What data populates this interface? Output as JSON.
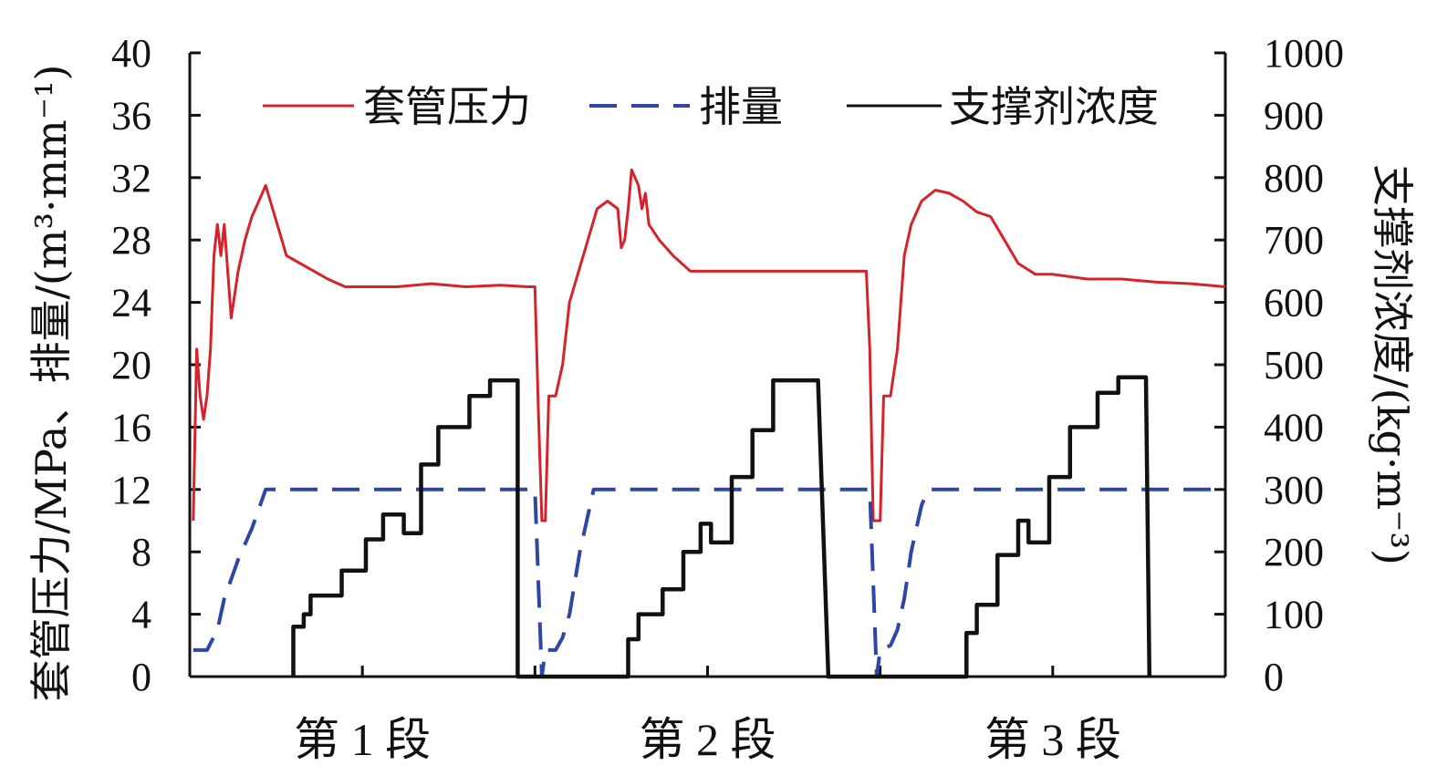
{
  "chart_data": {
    "type": "line",
    "title": "",
    "y_left": {
      "label": "套管压力/MPa、排量/(m³·mm⁻¹)",
      "range": [
        0,
        40
      ],
      "ticks": [
        0,
        4,
        8,
        12,
        16,
        20,
        24,
        28,
        32,
        36,
        40
      ],
      "tick_labels": [
        "0",
        "4",
        "8",
        "12",
        "16",
        "20",
        "24",
        "28",
        "32",
        "36",
        "40"
      ]
    },
    "y_right": {
      "label": "支撑剂浓度/(kg·m⁻³)",
      "range": [
        0,
        1000
      ],
      "ticks": [
        0,
        100,
        200,
        300,
        400,
        500,
        600,
        700,
        800,
        900,
        1000
      ],
      "tick_labels": [
        "0",
        "100",
        "200",
        "300",
        "400",
        "500",
        "600",
        "700",
        "800",
        "900",
        "1000"
      ]
    },
    "x_axis": {
      "range": [
        0,
        300
      ],
      "segment_labels": [
        "第 1 段",
        "第 2 段",
        "第 3 段"
      ],
      "segment_centers": [
        50,
        150,
        250
      ]
    },
    "legend": {
      "placement": "top",
      "entries": [
        "套管压力",
        "排量",
        "支撑剂浓度"
      ]
    },
    "series": [
      {
        "name": "套管压力",
        "axis": "left",
        "color": "#d6222a",
        "style": "solid",
        "points": [
          [
            1,
            10
          ],
          [
            2,
            21
          ],
          [
            3,
            18
          ],
          [
            4,
            16.5
          ],
          [
            5,
            18
          ],
          [
            6,
            21
          ],
          [
            7,
            27
          ],
          [
            8,
            29
          ],
          [
            9,
            27
          ],
          [
            10,
            29
          ],
          [
            11,
            26
          ],
          [
            12,
            23
          ],
          [
            14,
            26
          ],
          [
            16,
            28
          ],
          [
            18,
            29.5
          ],
          [
            20,
            30.5
          ],
          [
            22,
            31.5
          ],
          [
            24,
            30
          ],
          [
            26,
            28.5
          ],
          [
            28,
            27
          ],
          [
            32,
            26.5
          ],
          [
            36,
            26
          ],
          [
            40,
            25.5
          ],
          [
            45,
            25
          ],
          [
            50,
            25
          ],
          [
            60,
            25
          ],
          [
            70,
            25.2
          ],
          [
            80,
            25
          ],
          [
            90,
            25.1
          ],
          [
            98,
            25
          ],
          [
            100,
            25
          ],
          [
            101,
            17
          ],
          [
            102,
            10
          ],
          [
            103,
            10
          ],
          [
            104,
            18
          ],
          [
            106,
            18
          ],
          [
            108,
            20
          ],
          [
            110,
            24
          ],
          [
            112,
            25.5
          ],
          [
            114,
            27
          ],
          [
            116,
            28.5
          ],
          [
            118,
            30
          ],
          [
            121,
            30.5
          ],
          [
            124,
            30
          ],
          [
            125,
            27.5
          ],
          [
            126,
            28
          ],
          [
            127,
            30
          ],
          [
            128,
            32.5
          ],
          [
            130,
            31.5
          ],
          [
            131,
            30
          ],
          [
            132,
            31
          ],
          [
            133,
            29
          ],
          [
            136,
            28
          ],
          [
            140,
            27
          ],
          [
            145,
            26
          ],
          [
            150,
            26
          ],
          [
            160,
            26
          ],
          [
            170,
            26
          ],
          [
            180,
            26
          ],
          [
            190,
            26
          ],
          [
            196,
            26
          ],
          [
            197,
            21
          ],
          [
            198,
            10
          ],
          [
            200,
            10
          ],
          [
            201,
            18
          ],
          [
            203,
            18
          ],
          [
            205,
            21
          ],
          [
            207,
            27
          ],
          [
            209,
            29
          ],
          [
            212,
            30.5
          ],
          [
            216,
            31.2
          ],
          [
            220,
            31
          ],
          [
            224,
            30.5
          ],
          [
            228,
            29.8
          ],
          [
            232,
            29.5
          ],
          [
            236,
            28
          ],
          [
            240,
            26.5
          ],
          [
            245,
            25.8
          ],
          [
            250,
            25.8
          ],
          [
            260,
            25.5
          ],
          [
            270,
            25.5
          ],
          [
            280,
            25.3
          ],
          [
            290,
            25.2
          ],
          [
            300,
            25
          ]
        ]
      },
      {
        "name": "排量",
        "axis": "left",
        "color": "#2e46a6",
        "style": "dashed",
        "points": [
          [
            1,
            1.7
          ],
          [
            5,
            1.7
          ],
          [
            8,
            3
          ],
          [
            10,
            5
          ],
          [
            14,
            7.5
          ],
          [
            18,
            9.5
          ],
          [
            22,
            12
          ],
          [
            30,
            12
          ],
          [
            60,
            12
          ],
          [
            90,
            12
          ],
          [
            100,
            12
          ],
          [
            101,
            6
          ],
          [
            102,
            0
          ],
          [
            103,
            1.7
          ],
          [
            106,
            1.7
          ],
          [
            108,
            2.5
          ],
          [
            110,
            4
          ],
          [
            113,
            8
          ],
          [
            115,
            10
          ],
          [
            117,
            12
          ],
          [
            130,
            12
          ],
          [
            160,
            12
          ],
          [
            190,
            12
          ],
          [
            197,
            12
          ],
          [
            198,
            6
          ],
          [
            199,
            0
          ],
          [
            200,
            1.7
          ],
          [
            203,
            2
          ],
          [
            205,
            3
          ],
          [
            207,
            5
          ],
          [
            209,
            8
          ],
          [
            212,
            11
          ],
          [
            214,
            12
          ],
          [
            240,
            12
          ],
          [
            270,
            12
          ],
          [
            300,
            12
          ]
        ]
      },
      {
        "name": "支撑剂浓度",
        "axis": "right",
        "color": "#111111",
        "style": "solid",
        "points": [
          [
            30,
            0
          ],
          [
            30,
            80
          ],
          [
            33,
            80
          ],
          [
            33,
            100
          ],
          [
            35,
            100
          ],
          [
            35,
            130
          ],
          [
            44,
            130
          ],
          [
            44,
            170
          ],
          [
            51,
            170
          ],
          [
            51,
            220
          ],
          [
            56,
            220
          ],
          [
            56,
            260
          ],
          [
            62,
            260
          ],
          [
            62,
            230
          ],
          [
            67,
            230
          ],
          [
            67,
            340
          ],
          [
            72,
            340
          ],
          [
            72,
            400
          ],
          [
            81,
            400
          ],
          [
            81,
            450
          ],
          [
            87,
            450
          ],
          [
            87,
            475
          ],
          [
            90,
            475
          ],
          [
            95,
            475
          ],
          [
            95,
            0
          ],
          [
            127,
            0
          ],
          [
            127,
            60
          ],
          [
            130,
            60
          ],
          [
            130,
            100
          ],
          [
            137,
            100
          ],
          [
            137,
            140
          ],
          [
            143,
            140
          ],
          [
            143,
            200
          ],
          [
            148,
            200
          ],
          [
            148,
            245
          ],
          [
            151,
            245
          ],
          [
            151,
            215
          ],
          [
            157,
            215
          ],
          [
            157,
            320
          ],
          [
            163,
            320
          ],
          [
            163,
            395
          ],
          [
            169,
            395
          ],
          [
            169,
            475
          ],
          [
            182,
            475
          ],
          [
            185,
            0
          ],
          [
            225,
            0
          ],
          [
            225,
            70
          ],
          [
            228,
            70
          ],
          [
            228,
            115
          ],
          [
            234,
            115
          ],
          [
            234,
            195
          ],
          [
            240,
            195
          ],
          [
            240,
            250
          ],
          [
            243,
            250
          ],
          [
            243,
            215
          ],
          [
            249,
            215
          ],
          [
            249,
            320
          ],
          [
            255,
            320
          ],
          [
            255,
            400
          ],
          [
            263,
            400
          ],
          [
            263,
            455
          ],
          [
            269,
            455
          ],
          [
            269,
            480
          ],
          [
            277,
            480
          ],
          [
            278,
            0
          ]
        ]
      }
    ]
  }
}
